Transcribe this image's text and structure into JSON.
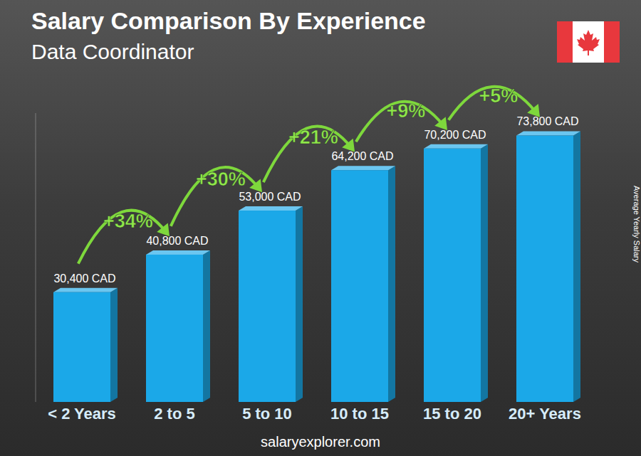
{
  "chart_data": {
    "type": "bar",
    "title": "Salary Comparison By Experience",
    "subtitle": "Data Coordinator",
    "y_label": "Average Yearly Salary",
    "source": "salaryexplorer.com",
    "categories": [
      "< 2 Years",
      "2 to 5",
      "5 to 10",
      "10 to 15",
      "15 to 20",
      "20+ Years"
    ],
    "values": [
      30400,
      40800,
      53000,
      64200,
      70200,
      73800
    ],
    "value_labels": [
      "30,400 CAD",
      "40,800 CAD",
      "53,000 CAD",
      "64,200 CAD",
      "70,200 CAD",
      "73,800 CAD"
    ],
    "changes": [
      null,
      {
        "value": 34,
        "label": "+34%"
      },
      {
        "value": 30,
        "label": "+30%"
      },
      {
        "value": 21,
        "label": "+21%"
      },
      {
        "value": 9,
        "label": "+9%"
      },
      {
        "value": 5,
        "label": "+5%"
      }
    ],
    "color": "#1ba8e8",
    "ylim": [
      0,
      80000
    ],
    "data_labels": true,
    "tick_labels": "x",
    "grid": false
  }
}
